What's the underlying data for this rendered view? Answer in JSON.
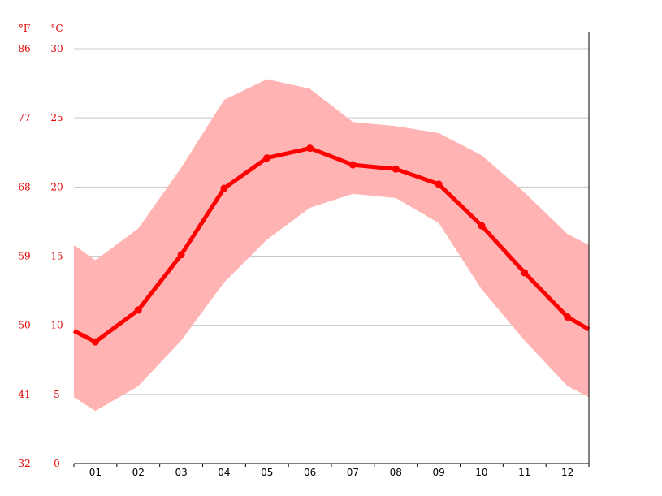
{
  "chart_data": {
    "type": "line",
    "title": "",
    "units": {
      "fahrenheit": "°F",
      "celsius": "°C"
    },
    "categories": [
      "01",
      "02",
      "03",
      "04",
      "05",
      "06",
      "07",
      "08",
      "09",
      "10",
      "11",
      "12"
    ],
    "y_ticks_celsius": [
      "0",
      "5",
      "10",
      "15",
      "20",
      "25",
      "30"
    ],
    "y_ticks_fahrenheit": [
      "32",
      "41",
      "50",
      "59",
      "68",
      "77",
      "86"
    ],
    "ylim": [
      0,
      30
    ],
    "grid": true,
    "colors": {
      "line": "#ff0000",
      "band": "#ffb3b3",
      "grid": "#c8c8c8",
      "ticks": "#e00000",
      "axis": "#000000"
    },
    "series": [
      {
        "values": [
          8.8,
          11.1,
          15.1,
          19.9,
          22.1,
          22.8,
          21.6,
          21.3,
          20.2,
          17.2,
          13.8,
          10.6
        ],
        "boundary_start": 9.6,
        "boundary_end": 9.7
      },
      {
        "values": [
          14.7,
          17.0,
          21.4,
          26.3,
          27.8,
          27.1,
          24.7,
          24.4,
          23.9,
          22.3,
          19.6,
          16.6
        ],
        "boundary_start": 15.8,
        "boundary_end": 15.8
      },
      {
        "values": [
          3.8,
          5.6,
          8.9,
          13.1,
          16.2,
          18.5,
          19.5,
          19.2,
          17.4,
          12.6,
          8.9,
          5.6
        ],
        "boundary_start": 4.8,
        "boundary_end": 4.8
      }
    ]
  }
}
